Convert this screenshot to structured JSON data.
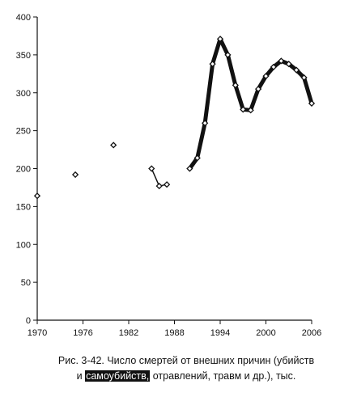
{
  "caption": {
    "line1": "Рис. 3-42. Число смертей от внешних причин (убийств",
    "line2_start": "и ",
    "line2_highlight": "самоубийств,",
    "line2_end": " отравлений, травм и др.), тыс."
  },
  "chart_data": {
    "type": "line",
    "title": "",
    "xlabel": "",
    "ylabel": "",
    "xlim": [
      1970,
      2006
    ],
    "ylim": [
      0,
      400
    ],
    "x_ticks": [
      1970,
      1976,
      1982,
      1988,
      1994,
      2000,
      2006
    ],
    "y_ticks": [
      0,
      50,
      100,
      150,
      200,
      250,
      300,
      350,
      400
    ],
    "grid": false,
    "colors": {
      "line": "#111111",
      "marker_fill": "#ffffff"
    },
    "isolated_points": [
      {
        "x": 1970,
        "y": 164
      },
      {
        "x": 1975,
        "y": 192
      },
      {
        "x": 1980,
        "y": 231
      }
    ],
    "segments": [
      {
        "stroke": "thin",
        "points": [
          {
            "x": 1985,
            "y": 200
          },
          {
            "x": 1986,
            "y": 177
          },
          {
            "x": 1987,
            "y": 179
          }
        ]
      },
      {
        "stroke": "thick",
        "points": [
          {
            "x": 1990,
            "y": 200
          },
          {
            "x": 1991,
            "y": 214
          },
          {
            "x": 1992,
            "y": 260
          },
          {
            "x": 1993,
            "y": 338
          },
          {
            "x": 1994,
            "y": 371
          },
          {
            "x": 1995,
            "y": 350
          },
          {
            "x": 1996,
            "y": 310
          },
          {
            "x": 1997,
            "y": 278
          },
          {
            "x": 1998,
            "y": 277
          },
          {
            "x": 1999,
            "y": 305
          },
          {
            "x": 2000,
            "y": 322
          },
          {
            "x": 2001,
            "y": 334
          },
          {
            "x": 2002,
            "y": 342
          },
          {
            "x": 2003,
            "y": 338
          },
          {
            "x": 2004,
            "y": 330
          },
          {
            "x": 2005,
            "y": 320
          },
          {
            "x": 2006,
            "y": 286
          }
        ]
      }
    ]
  }
}
